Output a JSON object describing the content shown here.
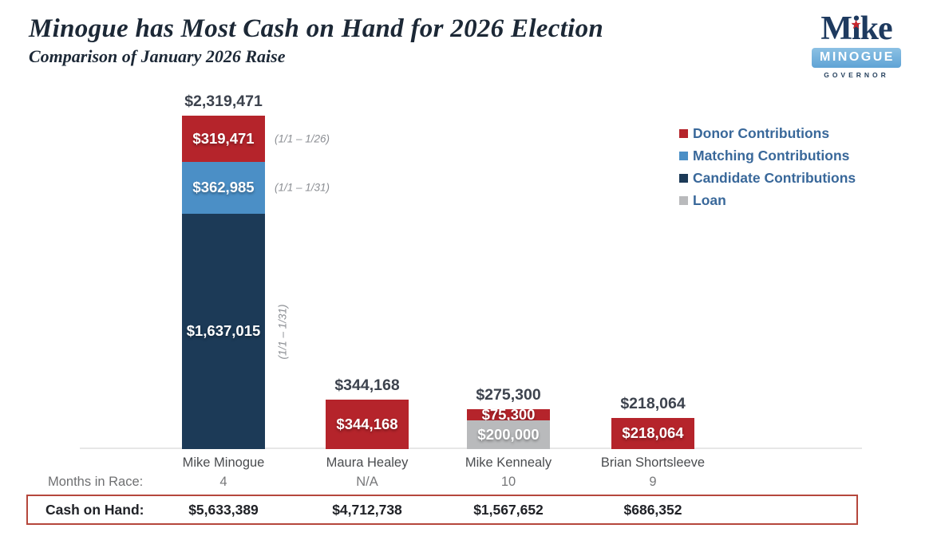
{
  "header": {
    "title": "Minogue has Most Cash on Hand for 2026 Election",
    "subtitle": "Comparison of January 2026 Raise"
  },
  "logo": {
    "name": "Mike",
    "star": "★",
    "banner": "MINOGUE",
    "office": "GOVERNOR"
  },
  "colors": {
    "donor": "#b5242b",
    "matching": "#4b8fc6",
    "candidate": "#1c3a57",
    "loan": "#b9babc",
    "legend_text": "#39689a",
    "box_border": "#b5473c",
    "title_text": "#1c2836"
  },
  "legend": {
    "items": [
      {
        "label": "Donor Contributions",
        "color": "#b5242b"
      },
      {
        "label": "Matching Contributions",
        "color": "#4b8fc6"
      },
      {
        "label": "Candidate Contributions",
        "color": "#1c3a57"
      },
      {
        "label": "Loan",
        "color": "#b9babc"
      }
    ]
  },
  "chart_data": {
    "type": "bar",
    "stacked": true,
    "title": "Minogue has Most Cash on Hand for 2026 Election",
    "subtitle": "Comparison of January 2026 Raise",
    "unit": "USD",
    "grid": false,
    "legend_position": "right",
    "categories": [
      "Mike Minogue",
      "Maura Healey",
      "Mike Kennealy",
      "Brian Shortsleeve"
    ],
    "series": [
      {
        "name": "Donor Contributions",
        "color": "#b5242b",
        "values": [
          319471,
          344168,
          75300,
          218064
        ]
      },
      {
        "name": "Matching Contributions",
        "color": "#4b8fc6",
        "values": [
          362985,
          0,
          0,
          0
        ]
      },
      {
        "name": "Candidate Contributions",
        "color": "#1c3a57",
        "values": [
          1637015,
          0,
          0,
          0
        ]
      },
      {
        "name": "Loan",
        "color": "#b9babc",
        "values": [
          0,
          0,
          200000,
          0
        ]
      }
    ],
    "totals": [
      2319471,
      344168,
      275300,
      218064
    ],
    "total_labels": [
      "$2,319,471",
      "$344,168",
      "$275,300",
      "$218,064"
    ]
  },
  "bars": [
    {
      "name": "Mike Minogue",
      "total_label": "$2,319,471",
      "segments": [
        {
          "series": "Donor Contributions",
          "value": 319471,
          "label": "$319,471",
          "color": "#b5242b",
          "note": "(1/1 – 1/26)",
          "note_rotated": false
        },
        {
          "series": "Matching Contributions",
          "value": 362985,
          "label": "$362,985",
          "color": "#4b8fc6",
          "note": "(1/1 – 1/31)",
          "note_rotated": false
        },
        {
          "series": "Candidate Contributions",
          "value": 1637015,
          "label": "$1,637,015",
          "color": "#1c3a57",
          "note": "(1/1 – 1/31)",
          "note_rotated": true
        }
      ]
    },
    {
      "name": "Maura Healey",
      "total_label": "$344,168",
      "segments": [
        {
          "series": "Donor Contributions",
          "value": 344168,
          "label": "$344,168",
          "color": "#b5242b",
          "note": "",
          "note_rotated": false
        }
      ]
    },
    {
      "name": "Mike Kennealy",
      "total_label": "$275,300",
      "segments": [
        {
          "series": "Donor Contributions",
          "value": 75300,
          "label": "$75,300",
          "color": "#b5242b",
          "note": "",
          "note_rotated": false
        },
        {
          "series": "Loan",
          "value": 200000,
          "label": "$200,000",
          "color": "#b9babc",
          "note": "",
          "note_rotated": false
        }
      ]
    },
    {
      "name": "Brian Shortsleeve",
      "total_label": "$218,064",
      "segments": [
        {
          "series": "Donor Contributions",
          "value": 218064,
          "label": "$218,064",
          "color": "#b5242b",
          "note": "",
          "note_rotated": false
        }
      ]
    }
  ],
  "footer": {
    "months_label": "Months in Race:",
    "months": [
      "4",
      "N/A",
      "10",
      "9"
    ],
    "cash_label": "Cash on Hand:",
    "cash": [
      "$5,633,389",
      "$4,712,738",
      "$1,567,652",
      "$686,352"
    ]
  }
}
